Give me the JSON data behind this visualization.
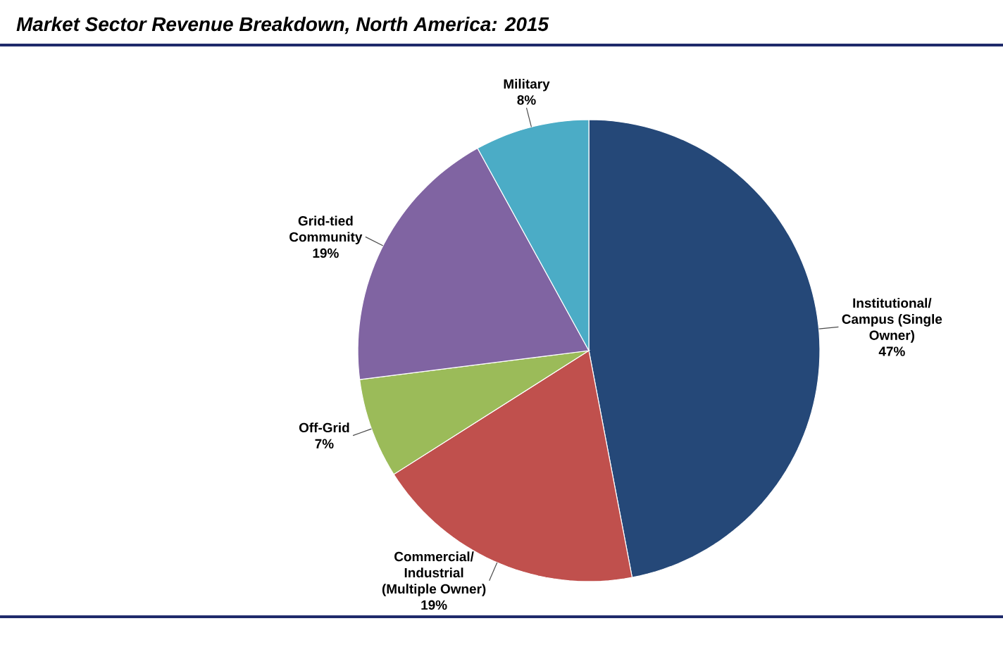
{
  "chart_data": {
    "type": "pie",
    "title": "Market Sector Revenue Breakdown, North America:  2015",
    "categories": [
      "Institutional/ Campus (Single Owner)",
      "Commercial/ Industrial (Multiple Owner)",
      "Off-Grid",
      "Grid-tied Community",
      "Military"
    ],
    "values": [
      47,
      19,
      7,
      19,
      8
    ],
    "value_labels": [
      "47%",
      "19%",
      "7%",
      "19%",
      "8%"
    ],
    "colors": [
      "#254878",
      "#c0504d",
      "#9bbb59",
      "#8064a2",
      "#4bacc6"
    ]
  }
}
